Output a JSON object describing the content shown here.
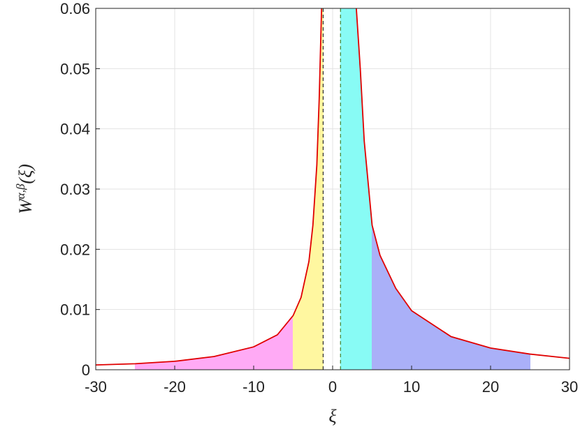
{
  "chart_data": {
    "type": "line",
    "x_label": "ξ",
    "y_label": {
      "base": "W",
      "sup": "α,β",
      "arg": "(ξ)"
    },
    "xlim": [
      -30,
      30
    ],
    "xticks": [
      -30,
      -20,
      -10,
      0,
      10,
      20,
      30
    ],
    "ylim": [
      0,
      0.06
    ],
    "yticks": [
      0,
      0.01,
      0.02,
      0.03,
      0.04,
      0.05,
      0.06
    ],
    "grid": true,
    "curve": {
      "color": "#e00000",
      "x": [
        -30,
        -25,
        -20,
        -15,
        -10,
        -7,
        -5,
        -4,
        -3,
        -2.5,
        -2,
        -1.7,
        -1.4,
        0.8,
        3,
        3.5,
        4,
        5,
        6,
        8,
        10,
        15,
        20,
        25,
        30
      ],
      "y": [
        0.0008,
        0.001,
        0.0014,
        0.0022,
        0.0038,
        0.0058,
        0.009,
        0.012,
        0.018,
        0.024,
        0.034,
        0.045,
        0.06,
        null,
        0.06,
        0.05,
        0.038,
        0.024,
        0.019,
        0.0135,
        0.0098,
        0.0055,
        0.0036,
        0.0026,
        0.0019
      ]
    },
    "regions": [
      {
        "x": [
          -25,
          -5
        ],
        "color": "#ffaaf5"
      },
      {
        "x": [
          -5,
          -1.2
        ],
        "color": "#fff7a0"
      },
      {
        "x": [
          1,
          5
        ],
        "color": "#88fbf5"
      },
      {
        "x": [
          5,
          25
        ],
        "color": "#aab0f8"
      }
    ],
    "vlines": [
      {
        "x": -1.2,
        "color": "#333333"
      },
      {
        "x": 1,
        "color": "#4a8a3a"
      }
    ]
  }
}
